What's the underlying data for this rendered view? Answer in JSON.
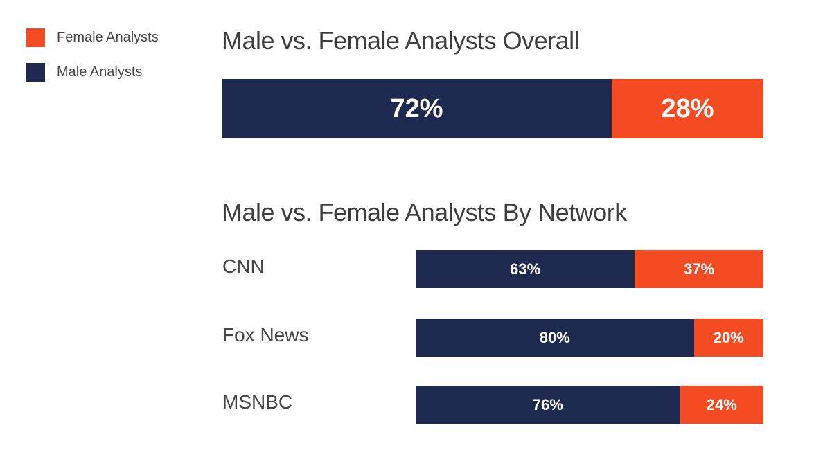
{
  "legend": {
    "items": [
      {
        "label": "Female Analysts",
        "color": "#f54b23"
      },
      {
        "label": "Male Analysts",
        "color": "#1f2a50"
      }
    ]
  },
  "chart_data": [
    {
      "type": "bar",
      "stacked": true,
      "orientation": "horizontal",
      "title": "Male vs. Female Analysts Overall",
      "categories": [
        ""
      ],
      "series": [
        {
          "name": "Male Analysts",
          "values": [
            72
          ],
          "labels": [
            "72%"
          ],
          "color": "#1f2a50"
        },
        {
          "name": "Female Analysts",
          "values": [
            28
          ],
          "labels": [
            "28%"
          ],
          "color": "#f54b23"
        }
      ],
      "xlim": [
        0,
        100
      ],
      "grid": false,
      "legend_position": "top-left"
    },
    {
      "type": "bar",
      "stacked": true,
      "orientation": "horizontal",
      "title": "Male vs. Female Analysts By Network",
      "categories": [
        "CNN",
        "Fox News",
        "MSNBC"
      ],
      "series": [
        {
          "name": "Male Analysts",
          "values": [
            63,
            80,
            76
          ],
          "labels": [
            "63%",
            "80%",
            "76%"
          ],
          "color": "#1f2a50"
        },
        {
          "name": "Female Analysts",
          "values": [
            37,
            20,
            24
          ],
          "labels": [
            "37%",
            "20%",
            "24%"
          ],
          "color": "#f54b23"
        }
      ],
      "xlim": [
        0,
        100
      ],
      "grid": false,
      "legend_position": "top-left"
    }
  ]
}
